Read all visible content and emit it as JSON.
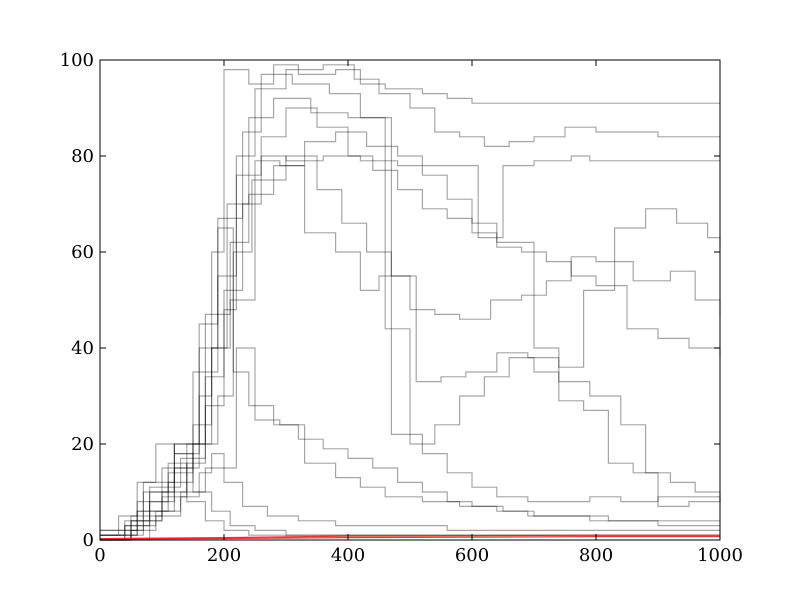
{
  "chart_data": {
    "type": "line",
    "title": "",
    "xlabel": "",
    "ylabel": "",
    "xlim": [
      0,
      1000
    ],
    "ylim": [
      0,
      100
    ],
    "grid": false,
    "legend": "none",
    "x_ticks": [
      "0",
      "200",
      "400",
      "600",
      "800",
      "1000"
    ],
    "y_ticks": [
      "0",
      "20",
      "40",
      "60",
      "80",
      "100"
    ],
    "colors": {
      "sample_path": "#000000",
      "baseline": "#dd2222",
      "frame": "#000000"
    },
    "series": [
      {
        "kind": "step",
        "points": [
          [
            0,
            1
          ],
          [
            40,
            3
          ],
          [
            80,
            8
          ],
          [
            120,
            15
          ],
          [
            160,
            30
          ],
          [
            180,
            60
          ],
          [
            200,
            98
          ],
          [
            240,
            95
          ],
          [
            280,
            99
          ],
          [
            320,
            97
          ],
          [
            380,
            98
          ],
          [
            420,
            95
          ],
          [
            460,
            94
          ],
          [
            520,
            93
          ],
          [
            560,
            92
          ],
          [
            600,
            91
          ]
        ]
      },
      {
        "kind": "step",
        "points": [
          [
            0,
            0
          ],
          [
            50,
            5
          ],
          [
            100,
            15
          ],
          [
            150,
            35
          ],
          [
            190,
            55
          ],
          [
            220,
            76
          ],
          [
            260,
            80
          ],
          [
            300,
            79
          ],
          [
            360,
            80
          ],
          [
            420,
            79
          ],
          [
            480,
            78
          ],
          [
            530,
            78
          ],
          [
            580,
            78
          ],
          [
            610,
            63
          ],
          [
            650,
            78
          ],
          [
            700,
            79
          ],
          [
            760,
            80
          ],
          [
            790,
            79
          ]
        ]
      },
      {
        "kind": "step",
        "points": [
          [
            0,
            2
          ],
          [
            60,
            6
          ],
          [
            120,
            20
          ],
          [
            170,
            47
          ],
          [
            210,
            50
          ],
          [
            250,
            79
          ],
          [
            290,
            78
          ],
          [
            330,
            64
          ],
          [
            380,
            60
          ],
          [
            420,
            52
          ],
          [
            450,
            55
          ],
          [
            500,
            48
          ],
          [
            540,
            47
          ],
          [
            580,
            46
          ],
          [
            630,
            50
          ],
          [
            680,
            51
          ],
          [
            720,
            54
          ],
          [
            760,
            59
          ],
          [
            800,
            58
          ],
          [
            860,
            54
          ],
          [
            920,
            56
          ],
          [
            960,
            50
          ],
          [
            1000,
            47
          ]
        ]
      },
      {
        "kind": "step",
        "points": [
          [
            0,
            0
          ],
          [
            50,
            4
          ],
          [
            100,
            10
          ],
          [
            140,
            20
          ],
          [
            180,
            40
          ],
          [
            205,
            70
          ],
          [
            240,
            88
          ],
          [
            280,
            92
          ],
          [
            340,
            89
          ],
          [
            400,
            88
          ],
          [
            460,
            44
          ],
          [
            500,
            20
          ],
          [
            540,
            24
          ],
          [
            580,
            30
          ],
          [
            620,
            34
          ],
          [
            660,
            38
          ],
          [
            700,
            35
          ],
          [
            740,
            29
          ],
          [
            780,
            27
          ],
          [
            820,
            16
          ],
          [
            860,
            14
          ],
          [
            900,
            7
          ],
          [
            950,
            8
          ],
          [
            1000,
            9
          ]
        ]
      },
      {
        "kind": "step",
        "points": [
          [
            0,
            1
          ],
          [
            60,
            8
          ],
          [
            110,
            12
          ],
          [
            150,
            20
          ],
          [
            190,
            30
          ],
          [
            215,
            60
          ],
          [
            245,
            75
          ],
          [
            300,
            80
          ],
          [
            350,
            73
          ],
          [
            390,
            66
          ],
          [
            430,
            60
          ],
          [
            470,
            55
          ],
          [
            510,
            33
          ],
          [
            550,
            34
          ],
          [
            590,
            35
          ],
          [
            640,
            39
          ],
          [
            690,
            38
          ],
          [
            740,
            36
          ],
          [
            780,
            52
          ],
          [
            830,
            65
          ],
          [
            880,
            69
          ],
          [
            930,
            66
          ],
          [
            980,
            63
          ],
          [
            1000,
            61
          ]
        ]
      },
      {
        "kind": "step",
        "points": [
          [
            0,
            0
          ],
          [
            40,
            3
          ],
          [
            90,
            6
          ],
          [
            130,
            10
          ],
          [
            170,
            15
          ],
          [
            220,
            40
          ],
          [
            250,
            25
          ],
          [
            290,
            24
          ],
          [
            330,
            16
          ],
          [
            380,
            13
          ],
          [
            420,
            11
          ],
          [
            460,
            9
          ],
          [
            520,
            8
          ],
          [
            580,
            7
          ],
          [
            640,
            6
          ],
          [
            690,
            5
          ],
          [
            740,
            5
          ],
          [
            790,
            4
          ],
          [
            840,
            4
          ],
          [
            900,
            3
          ],
          [
            960,
            3
          ],
          [
            1000,
            3
          ]
        ]
      },
      {
        "kind": "step",
        "points": [
          [
            0,
            1
          ],
          [
            70,
            10
          ],
          [
            120,
            18
          ],
          [
            160,
            40
          ],
          [
            190,
            67
          ],
          [
            230,
            85
          ],
          [
            260,
            97
          ],
          [
            310,
            95
          ],
          [
            370,
            93
          ],
          [
            420,
            88
          ],
          [
            470,
            22
          ],
          [
            520,
            18
          ],
          [
            560,
            14
          ],
          [
            600,
            11
          ],
          [
            640,
            9
          ],
          [
            690,
            8
          ],
          [
            740,
            8
          ],
          [
            790,
            9
          ],
          [
            840,
            8
          ],
          [
            900,
            9
          ],
          [
            960,
            9
          ],
          [
            1000,
            9
          ]
        ]
      },
      {
        "kind": "step",
        "points": [
          [
            0,
            0
          ],
          [
            50,
            2
          ],
          [
            90,
            5
          ],
          [
            130,
            9
          ],
          [
            160,
            14
          ],
          [
            180,
            18
          ],
          [
            200,
            12
          ],
          [
            230,
            7
          ],
          [
            270,
            5
          ],
          [
            320,
            4
          ],
          [
            380,
            3
          ],
          [
            440,
            3
          ],
          [
            500,
            3
          ],
          [
            560,
            2
          ],
          [
            620,
            2
          ],
          [
            680,
            2
          ],
          [
            740,
            2
          ],
          [
            800,
            2
          ],
          [
            860,
            2
          ],
          [
            920,
            2
          ],
          [
            980,
            2
          ],
          [
            1000,
            2
          ]
        ]
      },
      {
        "kind": "step",
        "points": [
          [
            0,
            1
          ],
          [
            60,
            6
          ],
          [
            110,
            14
          ],
          [
            150,
            24
          ],
          [
            180,
            40
          ],
          [
            210,
            62
          ],
          [
            240,
            72
          ],
          [
            280,
            78
          ],
          [
            330,
            83
          ],
          [
            380,
            85
          ],
          [
            430,
            82
          ],
          [
            480,
            80
          ],
          [
            520,
            76
          ],
          [
            560,
            71
          ],
          [
            600,
            66
          ],
          [
            640,
            62
          ],
          [
            700,
            40
          ],
          [
            740,
            33
          ],
          [
            790,
            30
          ],
          [
            840,
            24
          ],
          [
            880,
            14
          ],
          [
            920,
            12
          ],
          [
            960,
            10
          ],
          [
            1000,
            8
          ]
        ]
      },
      {
        "kind": "step",
        "points": [
          [
            0,
            0
          ],
          [
            50,
            4
          ],
          [
            100,
            9
          ],
          [
            140,
            16
          ],
          [
            170,
            34
          ],
          [
            200,
            52
          ],
          [
            230,
            70
          ],
          [
            260,
            84
          ],
          [
            300,
            90
          ],
          [
            350,
            86
          ],
          [
            400,
            80
          ],
          [
            440,
            77
          ],
          [
            480,
            73
          ],
          [
            520,
            69
          ],
          [
            560,
            67
          ],
          [
            600,
            64
          ],
          [
            640,
            61
          ],
          [
            680,
            60
          ],
          [
            720,
            58
          ],
          [
            760,
            55
          ],
          [
            800,
            53
          ],
          [
            850,
            44
          ],
          [
            900,
            42
          ],
          [
            950,
            40
          ],
          [
            1000,
            38
          ]
        ]
      },
      {
        "kind": "step",
        "points": [
          [
            0,
            2
          ],
          [
            70,
            12
          ],
          [
            120,
            20
          ],
          [
            160,
            45
          ],
          [
            190,
            65
          ],
          [
            215,
            35
          ],
          [
            240,
            28
          ],
          [
            280,
            24
          ],
          [
            320,
            21
          ],
          [
            360,
            19
          ],
          [
            400,
            17
          ],
          [
            440,
            15
          ],
          [
            480,
            12
          ],
          [
            520,
            10
          ],
          [
            560,
            8
          ],
          [
            600,
            7
          ],
          [
            650,
            6
          ],
          [
            700,
            5
          ],
          [
            760,
            5
          ],
          [
            820,
            4
          ],
          [
            880,
            4
          ],
          [
            940,
            4
          ],
          [
            1000,
            4
          ]
        ]
      },
      {
        "kind": "step",
        "points": [
          [
            0,
            0
          ],
          [
            80,
            11
          ],
          [
            130,
            17
          ],
          [
            170,
            28
          ],
          [
            200,
            48
          ],
          [
            220,
            80
          ],
          [
            250,
            94
          ],
          [
            300,
            98
          ],
          [
            360,
            99
          ],
          [
            410,
            96
          ],
          [
            450,
            93
          ],
          [
            500,
            90
          ],
          [
            540,
            85
          ],
          [
            580,
            84
          ],
          [
            620,
            82
          ],
          [
            660,
            83
          ],
          [
            700,
            84
          ],
          [
            750,
            86
          ],
          [
            800,
            85
          ],
          [
            850,
            85
          ],
          [
            900,
            84
          ],
          [
            950,
            84
          ],
          [
            1000,
            84
          ]
        ]
      },
      {
        "kind": "step",
        "points": [
          [
            0,
            0
          ],
          [
            40,
            4
          ],
          [
            80,
            10
          ],
          [
            110,
            16
          ],
          [
            140,
            8
          ],
          [
            170,
            4
          ],
          [
            200,
            2
          ],
          [
            240,
            1
          ],
          [
            300,
            1
          ],
          [
            360,
            1
          ],
          [
            420,
            1
          ],
          [
            480,
            1
          ],
          [
            540,
            1
          ],
          [
            600,
            1
          ],
          [
            660,
            1
          ],
          [
            720,
            1
          ],
          [
            780,
            1
          ],
          [
            840,
            1
          ],
          [
            900,
            1
          ],
          [
            960,
            1
          ],
          [
            1000,
            1
          ]
        ]
      },
      {
        "kind": "step",
        "points": [
          [
            0,
            1
          ],
          [
            30,
            5
          ],
          [
            60,
            12
          ],
          [
            90,
            20
          ],
          [
            120,
            18
          ],
          [
            150,
            10
          ],
          [
            180,
            6
          ],
          [
            210,
            3
          ],
          [
            250,
            2
          ],
          [
            300,
            1
          ],
          [
            360,
            1
          ],
          [
            420,
            1
          ],
          [
            480,
            1
          ],
          [
            540,
            1
          ],
          [
            600,
            1
          ],
          [
            660,
            1
          ],
          [
            720,
            1
          ],
          [
            780,
            1
          ],
          [
            840,
            1
          ],
          [
            900,
            1
          ],
          [
            960,
            1
          ],
          [
            1000,
            1
          ]
        ]
      },
      {
        "kind": "baseline",
        "color": "#dd2222",
        "points": [
          [
            0,
            0.3
          ],
          [
            200,
            0.5
          ],
          [
            400,
            0.8
          ],
          [
            600,
            0.9
          ],
          [
            800,
            1.0
          ],
          [
            1000,
            1.0
          ]
        ]
      },
      {
        "kind": "baseline",
        "color": "#dd2222",
        "points": [
          [
            0,
            0.2
          ],
          [
            200,
            0.3
          ],
          [
            400,
            0.5
          ],
          [
            600,
            0.6
          ],
          [
            800,
            0.7
          ],
          [
            1000,
            0.7
          ]
        ]
      }
    ]
  }
}
